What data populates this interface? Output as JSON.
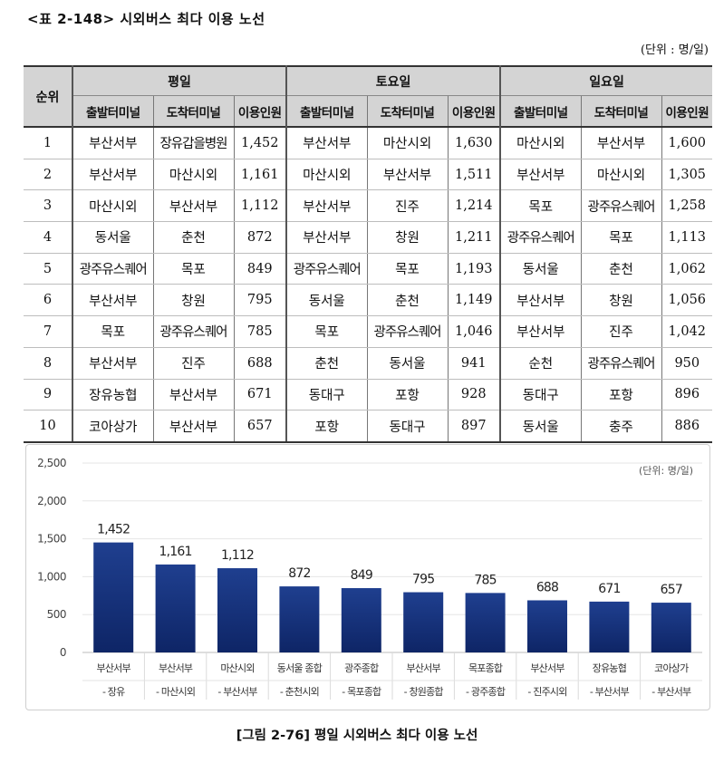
{
  "table_title": "<표 2-148> 시외버스 최다 이용 노선",
  "unit_note": "(단위 : 명/일)",
  "table": {
    "rank_header": "순위",
    "groups": [
      "평일",
      "토요일",
      "일요일"
    ],
    "subheaders": [
      "출발터미널",
      "도착터미널",
      "이용인원"
    ],
    "rows": [
      {
        "rank": "1",
        "weekday": [
          "부산서부",
          "장유갑을병원",
          "1,452"
        ],
        "saturday": [
          "부산서부",
          "마산시외",
          "1,630"
        ],
        "sunday": [
          "마산시외",
          "부산서부",
          "1,600"
        ]
      },
      {
        "rank": "2",
        "weekday": [
          "부산서부",
          "마산시외",
          "1,161"
        ],
        "saturday": [
          "마산시외",
          "부산서부",
          "1,511"
        ],
        "sunday": [
          "부산서부",
          "마산시외",
          "1,305"
        ]
      },
      {
        "rank": "3",
        "weekday": [
          "마산시외",
          "부산서부",
          "1,112"
        ],
        "saturday": [
          "부산서부",
          "진주",
          "1,214"
        ],
        "sunday": [
          "목포",
          "광주유스퀘어",
          "1,258"
        ]
      },
      {
        "rank": "4",
        "weekday": [
          "동서울",
          "춘천",
          "872"
        ],
        "saturday": [
          "부산서부",
          "창원",
          "1,211"
        ],
        "sunday": [
          "광주유스퀘어",
          "목포",
          "1,113"
        ]
      },
      {
        "rank": "5",
        "weekday": [
          "광주유스퀘어",
          "목포",
          "849"
        ],
        "saturday": [
          "광주유스퀘어",
          "목포",
          "1,193"
        ],
        "sunday": [
          "동서울",
          "춘천",
          "1,062"
        ]
      },
      {
        "rank": "6",
        "weekday": [
          "부산서부",
          "창원",
          "795"
        ],
        "saturday": [
          "동서울",
          "춘천",
          "1,149"
        ],
        "sunday": [
          "부산서부",
          "창원",
          "1,056"
        ]
      },
      {
        "rank": "7",
        "weekday": [
          "목포",
          "광주유스퀘어",
          "785"
        ],
        "saturday": [
          "목포",
          "광주유스퀘어",
          "1,046"
        ],
        "sunday": [
          "부산서부",
          "진주",
          "1,042"
        ]
      },
      {
        "rank": "8",
        "weekday": [
          "부산서부",
          "진주",
          "688"
        ],
        "saturday": [
          "춘천",
          "동서울",
          "941"
        ],
        "sunday": [
          "순천",
          "광주유스퀘어",
          "950"
        ]
      },
      {
        "rank": "9",
        "weekday": [
          "장유농협",
          "부산서부",
          "671"
        ],
        "saturday": [
          "동대구",
          "포항",
          "928"
        ],
        "sunday": [
          "동대구",
          "포항",
          "896"
        ]
      },
      {
        "rank": "10",
        "weekday": [
          "코아상가",
          "부산서부",
          "657"
        ],
        "saturday": [
          "포항",
          "동대구",
          "897"
        ],
        "sunday": [
          "동서울",
          "충주",
          "886"
        ]
      }
    ]
  },
  "chart_data": {
    "type": "bar",
    "title": "",
    "unit_label": "(단위: 명/일)",
    "categories": [
      [
        "부산서부",
        "- 장유"
      ],
      [
        "부산서부",
        "- 마산시외"
      ],
      [
        "마산시외",
        "- 부산서부"
      ],
      [
        "동서울 종합",
        "- 춘천시외"
      ],
      [
        "광주종합",
        "- 목포종합"
      ],
      [
        "부산서부",
        "- 창원종합"
      ],
      [
        "목포종합",
        "- 광주종합"
      ],
      [
        "부산서부",
        "- 진주시외"
      ],
      [
        "장유농협",
        "- 부산서부"
      ],
      [
        "코아상가",
        "- 부산서부"
      ]
    ],
    "values": [
      1452,
      1161,
      1112,
      872,
      849,
      795,
      785,
      688,
      671,
      657
    ],
    "value_labels": [
      "1,452",
      "1,161",
      "1,112",
      "872",
      "849",
      "795",
      "785",
      "688",
      "671",
      "657"
    ],
    "y_ticks": [
      "0",
      "500",
      "1,000",
      "1,500",
      "2,000",
      "2,500"
    ],
    "ylim": [
      0,
      2500
    ],
    "grid": true,
    "bar_color_top": "#1f3f8f",
    "bar_color_bottom": "#0e2566"
  },
  "figure_caption": "[그림 2-76] 평일 시외버스 최다 이용 노선"
}
